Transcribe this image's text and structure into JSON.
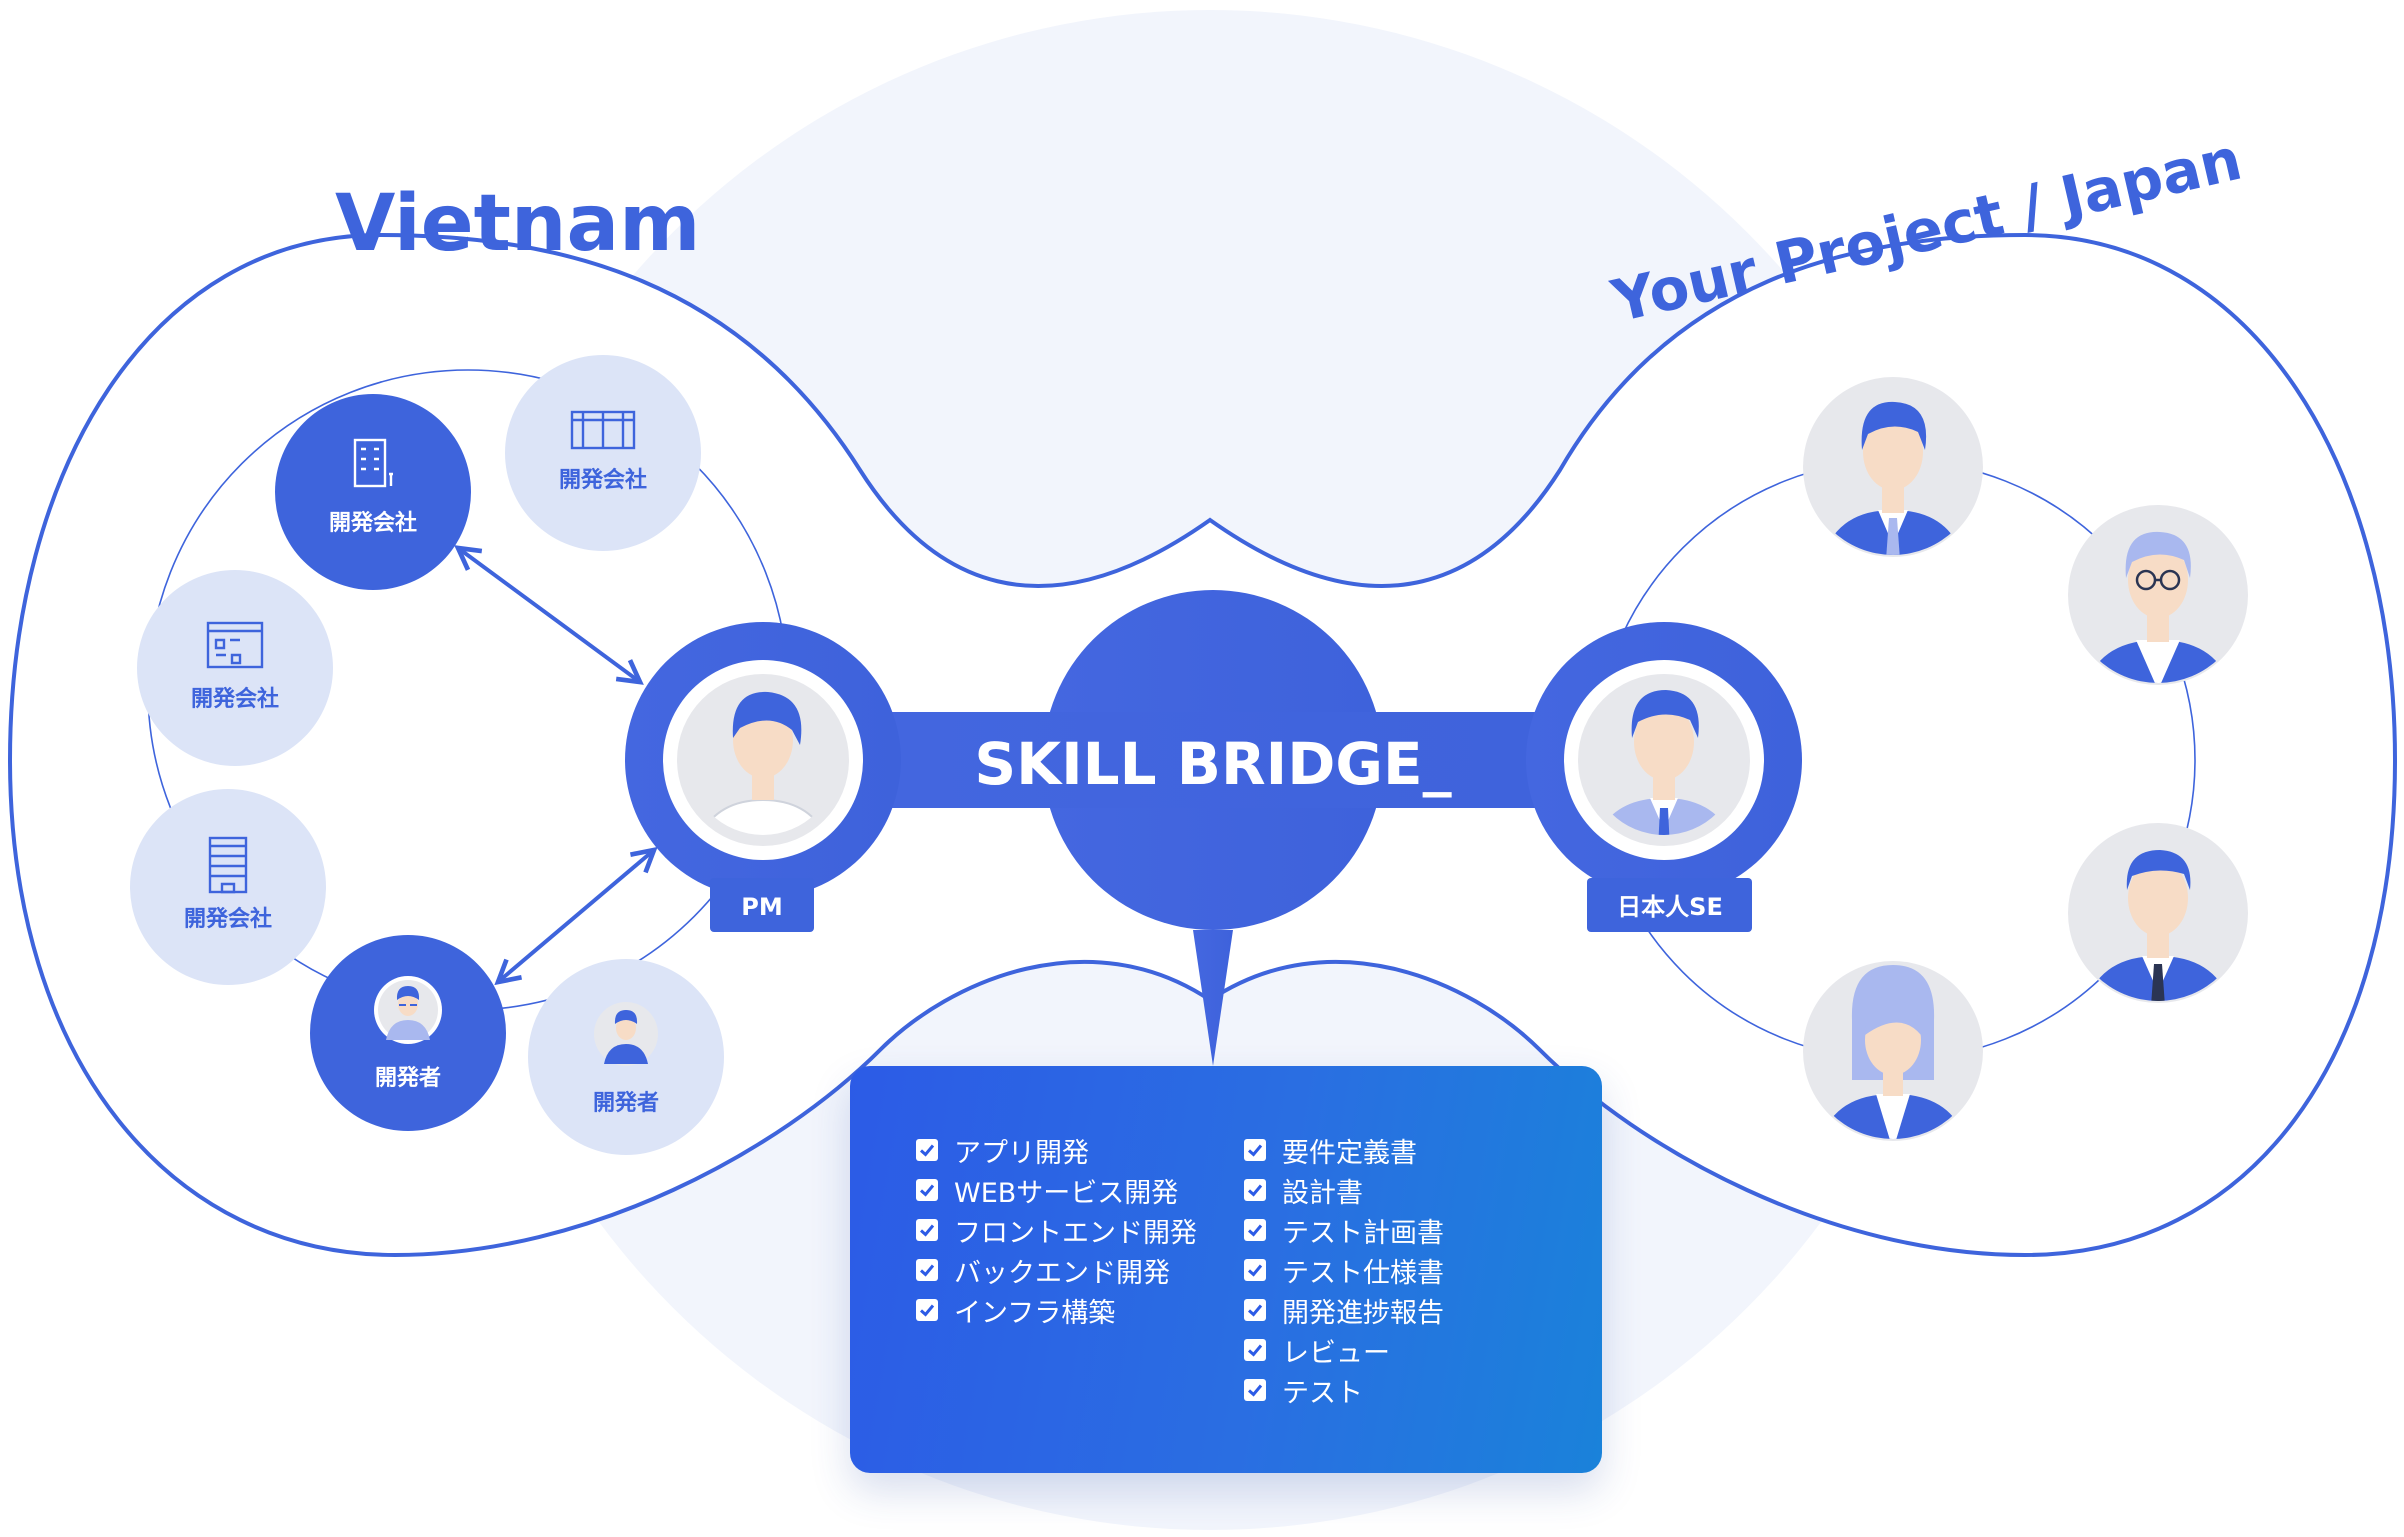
{
  "regions": {
    "vietnam": "Vietnam",
    "japan": "Your Project / Japan"
  },
  "hub": {
    "label": "SKILL BRIDGE_"
  },
  "roles": {
    "pm": "PM",
    "japanese_se": "日本人SE"
  },
  "vietnam_nodes": [
    {
      "label": "開発会社",
      "icon": "building-icon",
      "style": "filled"
    },
    {
      "label": "開発会社",
      "icon": "factory-icon",
      "style": "light"
    },
    {
      "label": "開発会社",
      "icon": "office-icon",
      "style": "light"
    },
    {
      "label": "開発会社",
      "icon": "tower-icon",
      "style": "light"
    },
    {
      "label": "開発者",
      "icon": "developer-avatar-icon",
      "style": "filled"
    },
    {
      "label": "開発者",
      "icon": "developer-avatar-icon",
      "style": "light"
    }
  ],
  "japan_members": [
    {
      "icon": "businessman-avatar-icon"
    },
    {
      "icon": "senior-glasses-avatar-icon"
    },
    {
      "icon": "manager-avatar-icon"
    },
    {
      "icon": "businesswoman-avatar-icon"
    }
  ],
  "services": {
    "left": [
      "アプリ開発",
      "WEBサービス開発",
      "フロントエンド開発",
      "バックエンド開発",
      "インフラ構築"
    ],
    "right": [
      "要件定義書",
      "設計書",
      "テスト計画書",
      "テスト仕様書",
      "開発進捗報告",
      "レビュー",
      "テスト"
    ]
  },
  "colors": {
    "primary": "#3e64dc",
    "light_node": "#dce4f7",
    "background_circle": "#f2f5fc",
    "card_start": "#2c5be6",
    "card_end": "#1a82da"
  }
}
